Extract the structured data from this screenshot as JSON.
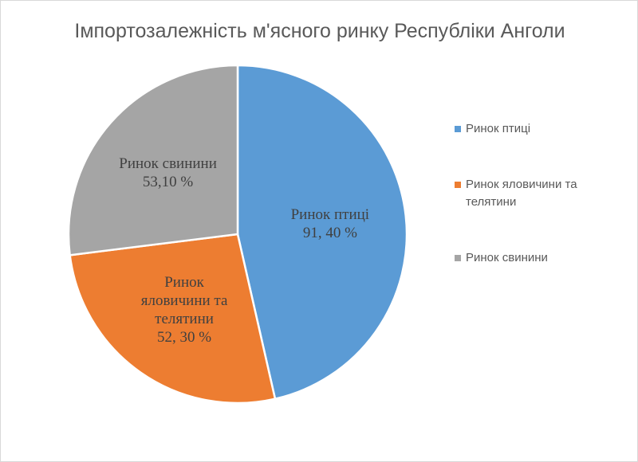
{
  "chart_data": {
    "type": "pie",
    "title": "Імпортозалежність м'ясного ринку Республіки Анголи",
    "categories": [
      "Ринок птиці",
      "Ринок яловичини та телятини",
      "Ринок свинини"
    ],
    "values": [
      91.4,
      52.3,
      53.1
    ],
    "value_labels": [
      "91, 40 %",
      "52, 30 %",
      "53,10 %"
    ],
    "colors": [
      "#5b9bd5",
      "#ed7d31",
      "#a5a5a5"
    ],
    "legend": "right"
  }
}
